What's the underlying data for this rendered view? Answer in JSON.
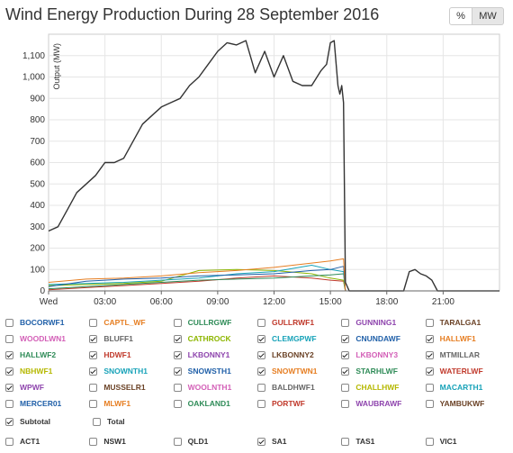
{
  "title": "Wind Energy Production During 28 September 2016",
  "unit_toggle": {
    "percent_label": "%",
    "mw_label": "MW",
    "selected": "MW"
  },
  "chart_data": {
    "type": "line",
    "ylabel": "Output (MW)",
    "xlim": [
      0,
      24
    ],
    "ylim": [
      0,
      1200
    ],
    "y_ticks": [
      0,
      100,
      200,
      300,
      400,
      500,
      600,
      700,
      800,
      900,
      1000,
      1100
    ],
    "y_tick_labels": [
      "0",
      "100",
      "200",
      "300",
      "400",
      "500",
      "600",
      "700",
      "800",
      "900",
      "1,000",
      "1,100"
    ],
    "x_ticks": [
      0,
      3,
      6,
      9,
      12,
      15,
      18,
      21
    ],
    "x_tick_labels": [
      "Wed",
      "03:00",
      "06:00",
      "09:00",
      "12:00",
      "15:00",
      "18:00",
      "21:00"
    ],
    "grid": true,
    "series": [
      {
        "name": "Subtotal",
        "color": "#333333",
        "x": [
          0,
          0.5,
          1,
          1.5,
          2,
          2.5,
          3,
          3.5,
          4,
          4.5,
          5,
          5.5,
          6,
          6.5,
          7,
          7.5,
          8,
          8.5,
          9,
          9.5,
          10,
          10.5,
          11,
          11.5,
          12,
          12.5,
          13,
          13.5,
          14,
          14.5,
          14.8,
          15,
          15.2,
          15.4,
          15.5,
          15.6,
          15.7,
          15.8,
          16,
          18,
          18.9,
          19.2,
          19.5,
          19.8,
          20.1,
          20.4,
          20.7,
          21,
          24
        ],
        "y": [
          280,
          300,
          380,
          460,
          500,
          540,
          600,
          600,
          620,
          700,
          780,
          820,
          860,
          880,
          900,
          960,
          1000,
          1060,
          1120,
          1160,
          1150,
          1170,
          1020,
          1120,
          1000,
          1100,
          980,
          960,
          960,
          1030,
          1060,
          1160,
          1170,
          960,
          920,
          960,
          880,
          40,
          0,
          0,
          0,
          90,
          100,
          80,
          70,
          50,
          0,
          0,
          0
        ]
      },
      {
        "name": "SNOWTWN1",
        "color": "#e67e22",
        "x": [
          0,
          2,
          4,
          6,
          8,
          10,
          12,
          14,
          15,
          15.7,
          15.8
        ],
        "y": [
          40,
          55,
          60,
          70,
          85,
          95,
          110,
          130,
          140,
          150,
          0
        ]
      },
      {
        "name": "CNUNDAWF",
        "color": "#1f5fa8",
        "x": [
          0,
          2,
          4,
          6,
          8,
          10,
          12,
          14,
          15,
          15.7,
          15.8
        ],
        "y": [
          20,
          45,
          55,
          60,
          70,
          75,
          80,
          95,
          100,
          115,
          0
        ]
      },
      {
        "name": "CLEMGPWF",
        "color": "#17a2b8",
        "x": [
          0,
          2,
          4,
          6,
          8,
          10,
          12,
          14,
          15,
          15.7,
          15.8
        ],
        "y": [
          30,
          35,
          40,
          50,
          60,
          80,
          90,
          120,
          100,
          90,
          0
        ]
      },
      {
        "name": "HALLWF2",
        "color": "#2e8b57",
        "x": [
          0,
          2,
          4,
          6,
          8,
          10,
          12,
          14,
          15,
          15.7,
          15.8
        ],
        "y": [
          10,
          20,
          30,
          40,
          50,
          55,
          60,
          70,
          75,
          80,
          0
        ]
      },
      {
        "name": "CATHROCK",
        "color": "#8db600",
        "x": [
          0,
          2,
          4,
          6,
          8,
          10,
          12,
          14,
          15,
          15.7,
          15.8
        ],
        "y": [
          25,
          30,
          35,
          45,
          95,
          100,
          95,
          80,
          60,
          50,
          0
        ]
      },
      {
        "name": "HDWF1",
        "color": "#c0392b",
        "x": [
          0,
          2,
          4,
          6,
          8,
          10,
          12,
          14,
          15,
          15.7,
          15.8
        ],
        "y": [
          5,
          15,
          25,
          35,
          45,
          60,
          70,
          60,
          50,
          45,
          0
        ]
      }
    ]
  },
  "legend": {
    "rows": [
      [
        {
          "label": "BOCORWF1",
          "checked": false,
          "color": "#1f5fa8"
        },
        {
          "label": "CAPTL_WF",
          "checked": false,
          "color": "#e67e22"
        },
        {
          "label": "CULLRGWF",
          "checked": false,
          "color": "#2e8b57"
        },
        {
          "label": "GULLRWF1",
          "checked": false,
          "color": "#c0392b"
        },
        {
          "label": "GUNNING1",
          "checked": false,
          "color": "#8e44ad"
        },
        {
          "label": "TARALGA1",
          "checked": false,
          "color": "#6b4226"
        }
      ],
      [
        {
          "label": "WOODLWN1",
          "checked": false,
          "color": "#d35fb7"
        },
        {
          "label": "BLUFF1",
          "checked": true,
          "color": "#666666"
        },
        {
          "label": "CATHROCK",
          "checked": true,
          "color": "#8db600"
        },
        {
          "label": "CLEMGPWF",
          "checked": true,
          "color": "#17a2b8"
        },
        {
          "label": "CNUNDAWF",
          "checked": true,
          "color": "#1f5fa8"
        },
        {
          "label": "HALLWF1",
          "checked": true,
          "color": "#e67e22"
        }
      ],
      [
        {
          "label": "HALLWF2",
          "checked": true,
          "color": "#2e8b57"
        },
        {
          "label": "HDWF1",
          "checked": true,
          "color": "#c0392b"
        },
        {
          "label": "LKBONNY1",
          "checked": true,
          "color": "#8e44ad"
        },
        {
          "label": "LKBONNY2",
          "checked": true,
          "color": "#6b4226"
        },
        {
          "label": "LKBONNY3",
          "checked": true,
          "color": "#d35fb7"
        },
        {
          "label": "MTMILLAR",
          "checked": true,
          "color": "#666666"
        }
      ],
      [
        {
          "label": "NBHWF1",
          "checked": true,
          "color": "#b5b800"
        },
        {
          "label": "SNOWNTH1",
          "checked": true,
          "color": "#17a2b8"
        },
        {
          "label": "SNOWSTH1",
          "checked": true,
          "color": "#1f5fa8"
        },
        {
          "label": "SNOWTWN1",
          "checked": true,
          "color": "#e67e22"
        },
        {
          "label": "STARHLWF",
          "checked": true,
          "color": "#2e8b57"
        },
        {
          "label": "WATERLWF",
          "checked": true,
          "color": "#c0392b"
        }
      ],
      [
        {
          "label": "WPWF",
          "checked": true,
          "color": "#8e44ad"
        },
        {
          "label": "MUSSELR1",
          "checked": false,
          "color": "#6b4226"
        },
        {
          "label": "WOOLNTH1",
          "checked": false,
          "color": "#d35fb7"
        },
        {
          "label": "BALDHWF1",
          "checked": false,
          "color": "#666666"
        },
        {
          "label": "CHALLHWF",
          "checked": false,
          "color": "#b5b800"
        },
        {
          "label": "MACARTH1",
          "checked": false,
          "color": "#17a2b8"
        }
      ],
      [
        {
          "label": "MERCER01",
          "checked": false,
          "color": "#1f5fa8"
        },
        {
          "label": "MLWF1",
          "checked": false,
          "color": "#e67e22"
        },
        {
          "label": "OAKLAND1",
          "checked": false,
          "color": "#2e8b57"
        },
        {
          "label": "PORTWF",
          "checked": false,
          "color": "#c0392b"
        },
        {
          "label": "WAUBRAWF",
          "checked": false,
          "color": "#8e44ad"
        },
        {
          "label": "YAMBUKWF",
          "checked": false,
          "color": "#6b4226"
        }
      ]
    ],
    "subtotal_row": [
      {
        "label": "Subtotal",
        "checked": true,
        "color": "#333333"
      },
      {
        "label": "Total",
        "checked": false,
        "color": "#333333"
      }
    ],
    "region_row": [
      {
        "label": "ACT1",
        "checked": false,
        "color": "#333333"
      },
      {
        "label": "NSW1",
        "checked": false,
        "color": "#333333"
      },
      {
        "label": "QLD1",
        "checked": false,
        "color": "#333333"
      },
      {
        "label": "SA1",
        "checked": true,
        "color": "#333333"
      },
      {
        "label": "TAS1",
        "checked": false,
        "color": "#333333"
      },
      {
        "label": "VIC1",
        "checked": false,
        "color": "#333333"
      }
    ]
  }
}
